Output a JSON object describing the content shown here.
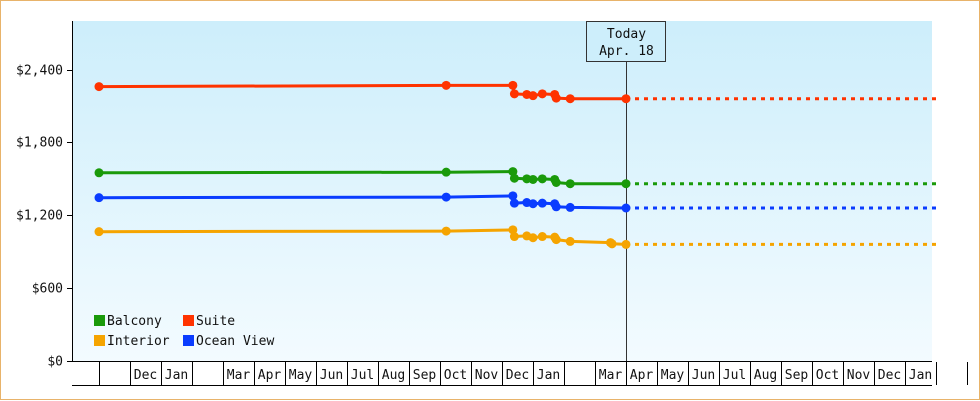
{
  "chart_data": {
    "type": "line",
    "ylim": [
      0,
      2800
    ],
    "yticks": [
      {
        "value": 0,
        "label": "$0"
      },
      {
        "value": 600,
        "label": "$600"
      },
      {
        "value": 1200,
        "label": "$1,200"
      },
      {
        "value": 1800,
        "label": "$1,800"
      },
      {
        "value": 2400,
        "label": "$2,400"
      }
    ],
    "month_cells": [
      {
        "label": ""
      },
      {
        "label": "Dec"
      },
      {
        "label": "Jan"
      },
      {
        "label": ""
      },
      {
        "label": "Mar"
      },
      {
        "label": "Apr"
      },
      {
        "label": "May"
      },
      {
        "label": "Jun"
      },
      {
        "label": "Jul"
      },
      {
        "label": "Aug"
      },
      {
        "label": "Sep"
      },
      {
        "label": "Oct"
      },
      {
        "label": "Nov"
      },
      {
        "label": "Dec"
      },
      {
        "label": "Jan"
      },
      {
        "label": ""
      },
      {
        "label": "Mar"
      },
      {
        "label": "Apr"
      },
      {
        "label": "May"
      },
      {
        "label": "Jun"
      },
      {
        "label": "Jul"
      },
      {
        "label": "Aug"
      },
      {
        "label": "Sep"
      },
      {
        "label": "Oct"
      },
      {
        "label": "Nov"
      },
      {
        "label": "Dec"
      },
      {
        "label": "Jan"
      },
      {
        "label": ""
      }
    ],
    "today": {
      "line1": "Today",
      "line2": "Apr. 18",
      "month_index": 17.0
    },
    "grid": false,
    "legend_position": "bottom-left",
    "series": [
      {
        "name": "Balcony",
        "color": "#1a9a0a",
        "points": [
          [
            0.0,
            1550
          ],
          [
            11.2,
            1555
          ],
          [
            13.35,
            1560
          ],
          [
            13.4,
            1505
          ],
          [
            13.8,
            1500
          ],
          [
            14.0,
            1495
          ],
          [
            14.3,
            1500
          ],
          [
            14.7,
            1495
          ],
          [
            14.75,
            1470
          ],
          [
            15.2,
            1460
          ],
          [
            17.0,
            1460
          ]
        ],
        "projection_end": 27.0
      },
      {
        "name": "Suite",
        "color": "#ff3300",
        "points": [
          [
            0.0,
            2260
          ],
          [
            11.2,
            2270
          ],
          [
            13.35,
            2270
          ],
          [
            13.4,
            2200
          ],
          [
            13.8,
            2195
          ],
          [
            14.0,
            2185
          ],
          [
            14.3,
            2200
          ],
          [
            14.7,
            2195
          ],
          [
            14.75,
            2165
          ],
          [
            15.2,
            2160
          ],
          [
            17.0,
            2160
          ]
        ],
        "projection_end": 27.0
      },
      {
        "name": "Interior",
        "color": "#f5a400",
        "points": [
          [
            0.0,
            1065
          ],
          [
            11.2,
            1070
          ],
          [
            13.35,
            1080
          ],
          [
            13.4,
            1025
          ],
          [
            13.8,
            1030
          ],
          [
            14.0,
            1015
          ],
          [
            14.3,
            1025
          ],
          [
            14.7,
            1020
          ],
          [
            14.75,
            1000
          ],
          [
            15.2,
            985
          ],
          [
            16.5,
            975
          ],
          [
            16.55,
            965
          ],
          [
            17.0,
            960
          ]
        ],
        "projection_end": 27.0
      },
      {
        "name": "Ocean View",
        "color": "#0a3cff",
        "points": [
          [
            0.0,
            1345
          ],
          [
            11.2,
            1350
          ],
          [
            13.35,
            1360
          ],
          [
            13.4,
            1300
          ],
          [
            13.8,
            1305
          ],
          [
            14.0,
            1295
          ],
          [
            14.3,
            1300
          ],
          [
            14.7,
            1295
          ],
          [
            14.75,
            1270
          ],
          [
            15.2,
            1265
          ],
          [
            17.0,
            1260
          ]
        ],
        "projection_end": 27.0
      }
    ],
    "legend": [
      {
        "name": "Balcony",
        "color": "#1a9a0a"
      },
      {
        "name": "Suite",
        "color": "#ff3300"
      },
      {
        "name": "Interior",
        "color": "#f5a400"
      },
      {
        "name": "Ocean View",
        "color": "#0a3cff"
      }
    ]
  }
}
